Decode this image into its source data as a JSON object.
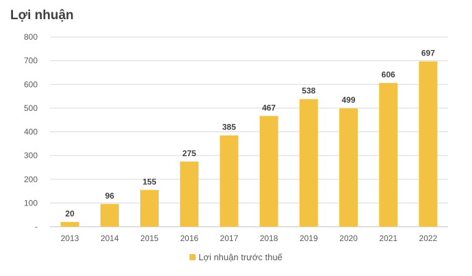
{
  "chart_data": {
    "type": "bar",
    "title": "Lợi nhuận",
    "categories": [
      "2013",
      "2014",
      "2015",
      "2016",
      "2017",
      "2018",
      "2019",
      "2020",
      "2021",
      "2022"
    ],
    "series": [
      {
        "name": "Lợi nhuận trước thuế",
        "values": [
          20,
          96,
          155,
          275,
          385,
          467,
          538,
          499,
          606,
          697
        ],
        "color": "#F4C242"
      }
    ],
    "ylim": [
      0,
      800
    ],
    "yticks": [
      0,
      100,
      200,
      300,
      400,
      500,
      600,
      700,
      800
    ],
    "ytick_labels": [
      "-",
      "100",
      "200",
      "300",
      "400",
      "500",
      "600",
      "700",
      "800"
    ],
    "xlabel": "",
    "ylabel": "",
    "grid": true,
    "legend": "bottom"
  }
}
